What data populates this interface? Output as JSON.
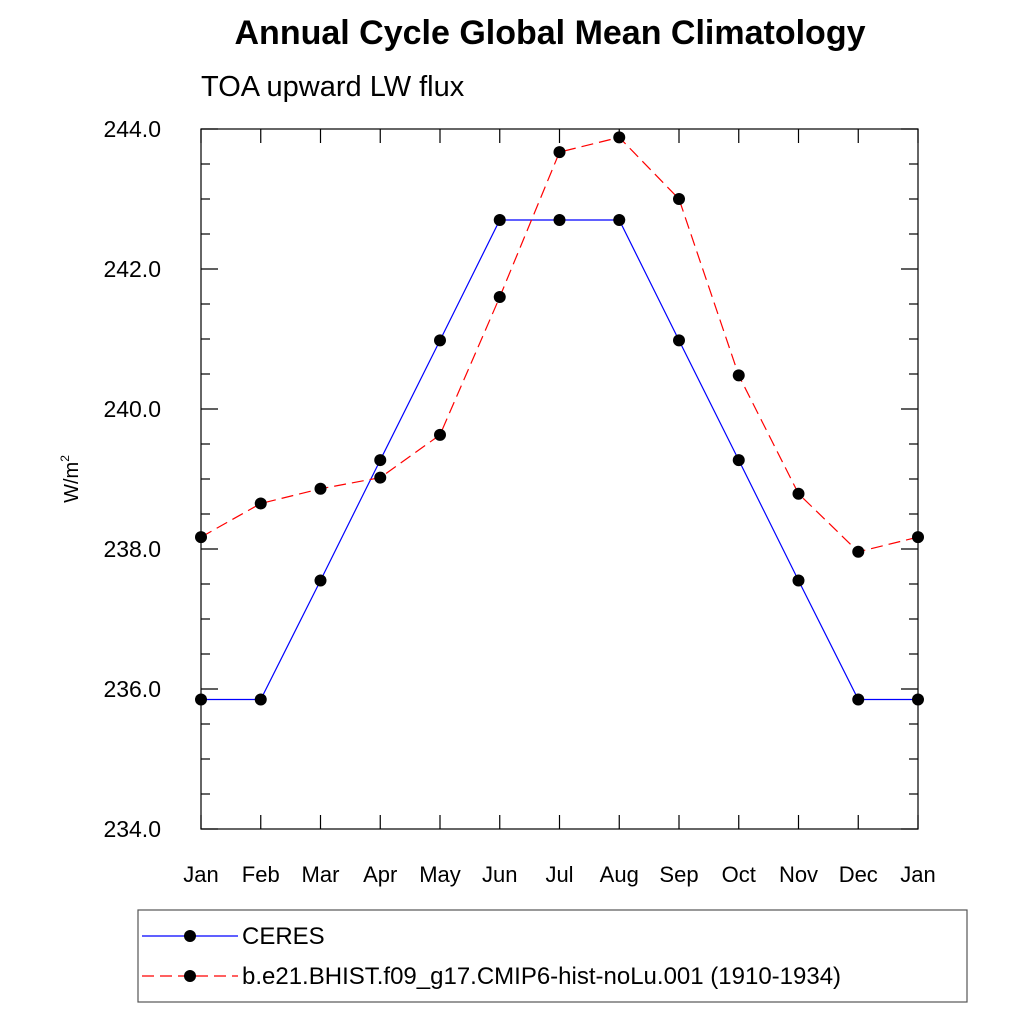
{
  "chart_data": {
    "type": "line",
    "title": "Annual Cycle Global Mean Climatology",
    "subtitle": "TOA upward LW flux",
    "ylabel_base": "W/m",
    "ylabel_sup": "2",
    "categories": [
      "Jan",
      "Feb",
      "Mar",
      "Apr",
      "May",
      "Jun",
      "Jul",
      "Aug",
      "Sep",
      "Oct",
      "Nov",
      "Dec",
      "Jan"
    ],
    "yticks": [
      "234.0",
      "236.0",
      "238.0",
      "240.0",
      "242.0",
      "244.0"
    ],
    "ylim": [
      234,
      244
    ],
    "grid": false,
    "legend_position": "bottom",
    "series": [
      {
        "name": "CERES",
        "color": "#0000ff",
        "dash": "solid",
        "marker": "filled-circle",
        "values": [
          235.85,
          235.85,
          237.55,
          239.27,
          240.98,
          242.7,
          242.7,
          242.7,
          240.98,
          239.27,
          237.55,
          235.85,
          235.85
        ]
      },
      {
        "name": "b.e21.BHIST.f09_g17.CMIP6-hist-noLu.001 (1910-1934)",
        "color": "#ff0000",
        "dash": "dashed",
        "marker": "filled-circle",
        "values": [
          238.17,
          238.65,
          238.86,
          239.02,
          239.63,
          241.6,
          243.67,
          243.88,
          243.0,
          240.48,
          238.79,
          237.96,
          238.17
        ]
      }
    ]
  }
}
